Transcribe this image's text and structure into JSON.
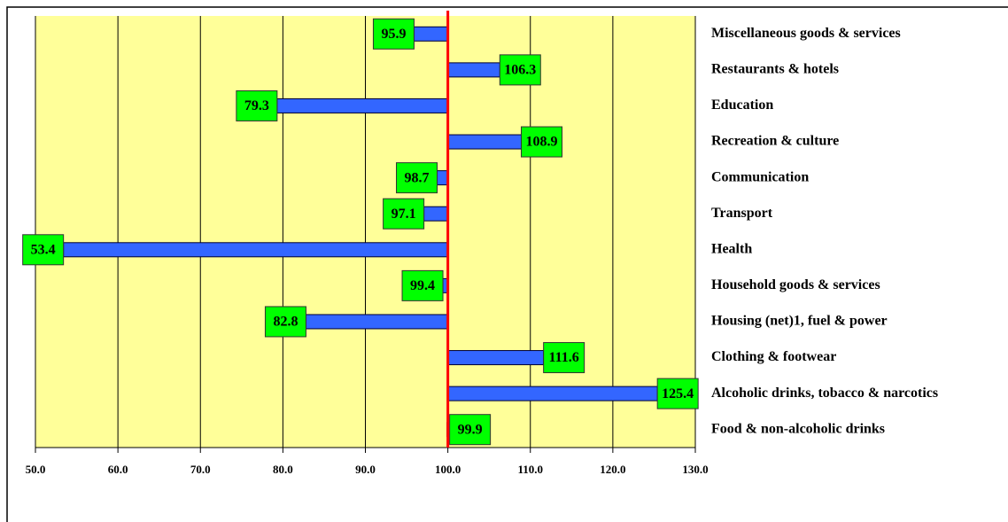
{
  "chart_data": {
    "type": "bar",
    "orientation": "horizontal",
    "categories": [
      "Miscellaneous goods & services",
      "Restaurants & hotels",
      "Education",
      "Recreation & culture",
      "Communication",
      "Transport",
      "Health",
      "Household goods & services",
      "Housing (net)1, fuel & power",
      "Clothing & footwear",
      "Alcoholic drinks, tobacco & narcotics",
      "Food & non-alcoholic drinks"
    ],
    "values": [
      95.9,
      106.3,
      79.3,
      108.9,
      98.7,
      97.1,
      53.4,
      99.4,
      82.8,
      111.6,
      125.4,
      99.9
    ],
    "color": "#3366ff",
    "label_color": "#00ff00",
    "background": "#ffff99",
    "baseline": 100,
    "baseline_color": "#ff0000",
    "xlim": [
      50,
      130
    ],
    "xticks": [
      {
        "value": 50,
        "label": "50.0"
      },
      {
        "value": 60,
        "label": "60.0"
      },
      {
        "value": 70,
        "label": "70.0"
      },
      {
        "value": 80,
        "label": "80.0"
      },
      {
        "value": 90,
        "label": "90.0"
      },
      {
        "value": 100,
        "label": "100.0"
      },
      {
        "value": 110,
        "label": "110.0"
      },
      {
        "value": 120,
        "label": "120.0"
      },
      {
        "value": 130,
        "label": "130.0"
      }
    ],
    "grid": true
  }
}
